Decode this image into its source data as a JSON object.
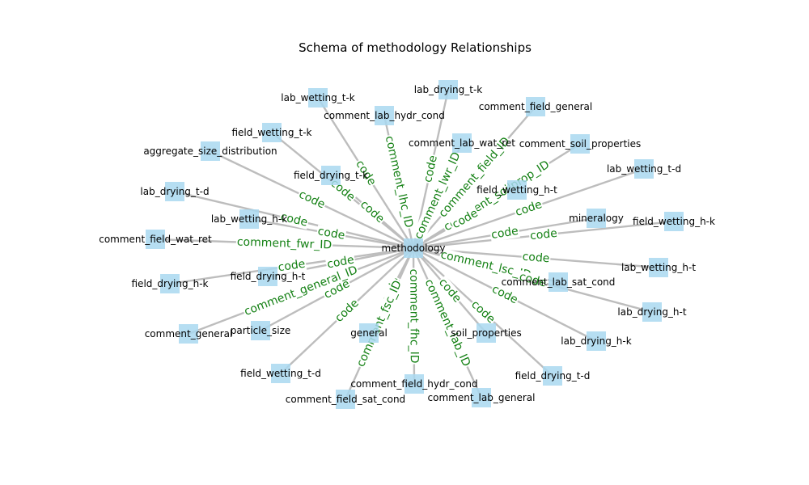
{
  "title": "Schema of methodology Relationships",
  "colors": {
    "node_fill": "#a9d8f0",
    "edge_stroke": "#bdbdbd",
    "edge_label": "#138013",
    "text": "#000000"
  },
  "diagram": {
    "center": "methodology",
    "nodes": [
      "lab_wetting_t-k",
      "lab_drying_t-k",
      "comment_lab_hydr_cond",
      "comment_field_general",
      "field_wetting_t-k",
      "comment_lab_wat_ret",
      "comment_soil_properties",
      "aggregate_size_distribution",
      "field_drying_t-k",
      "lab_wetting_t-d",
      "lab_drying_t-d",
      "field_wetting_h-t",
      "mineralogy",
      "field_wetting_h-k",
      "lab_wetting_h-k",
      "comment_field_wat_ret",
      "lab_wetting_h-t",
      "field_drying_h-t",
      "comment_lab_sat_cond",
      "field_drying_h-k",
      "lab_drying_h-t",
      "particle_size",
      "comment_general",
      "general",
      "soil_properties",
      "lab_drying_h-k",
      "field_wetting_t-d",
      "field_drying_t-d",
      "comment_field_hydr_cond",
      "comment_lab_general",
      "comment_field_sat_cond"
    ],
    "edges": [
      {
        "target": "lab_wetting_t-k",
        "label": "code"
      },
      {
        "target": "lab_drying_t-k",
        "label": "code"
      },
      {
        "target": "comment_lab_hydr_cond",
        "label": "comment_lhc_ID"
      },
      {
        "target": "comment_field_general",
        "label": "comment_field_ID"
      },
      {
        "target": "field_wetting_t-k",
        "label": "code"
      },
      {
        "target": "comment_lab_wat_ret",
        "label": "comment_lwr_ID"
      },
      {
        "target": "comment_soil_properties",
        "label": "comment_soilprop_ID"
      },
      {
        "target": "aggregate_size_distribution",
        "label": "code"
      },
      {
        "target": "field_drying_t-k",
        "label": "code"
      },
      {
        "target": "lab_wetting_t-d",
        "label": "code"
      },
      {
        "target": "lab_drying_t-d",
        "label": "code"
      },
      {
        "target": "field_wetting_h-t",
        "label": "code"
      },
      {
        "target": "mineralogy",
        "label": "code"
      },
      {
        "target": "field_wetting_h-k",
        "label": "code"
      },
      {
        "target": "lab_wetting_h-k",
        "label": "code"
      },
      {
        "target": "comment_field_wat_ret",
        "label": "comment_fwr_ID"
      },
      {
        "target": "lab_wetting_h-t",
        "label": "code"
      },
      {
        "target": "field_drying_h-t",
        "label": "code"
      },
      {
        "target": "comment_lab_sat_cond",
        "label": "comment_lsc_ID"
      },
      {
        "target": "field_drying_h-k",
        "label": "code"
      },
      {
        "target": "lab_drying_h-t",
        "label": "code"
      },
      {
        "target": "particle_size",
        "label": "code"
      },
      {
        "target": "comment_general",
        "label": "comment_general_ID"
      },
      {
        "target": "general",
        "label": "code"
      },
      {
        "target": "soil_properties",
        "label": "code"
      },
      {
        "target": "lab_drying_h-k",
        "label": "code"
      },
      {
        "target": "field_wetting_t-d",
        "label": "code"
      },
      {
        "target": "field_drying_t-d",
        "label": "code"
      },
      {
        "target": "comment_field_hydr_cond",
        "label": "comment_fhc_ID"
      },
      {
        "target": "comment_lab_general",
        "label": "comment_lab_ID"
      },
      {
        "target": "comment_field_sat_cond",
        "label": "comment_fsc_ID"
      }
    ]
  }
}
